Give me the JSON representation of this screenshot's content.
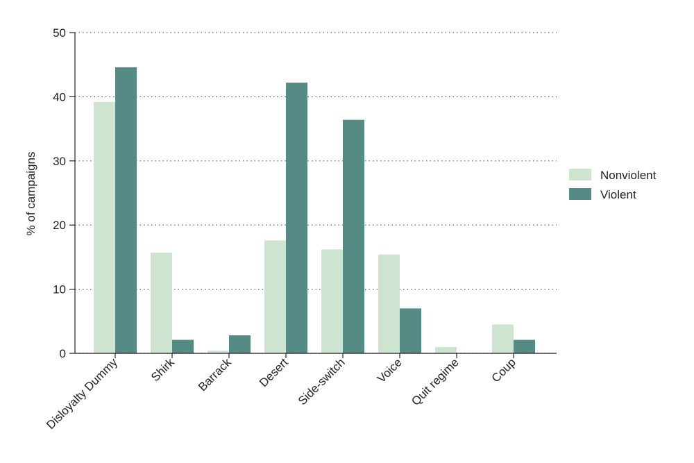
{
  "chart_data": {
    "type": "bar",
    "title": "",
    "xlabel": "",
    "ylabel": "% of campaigns",
    "ylim": [
      0,
      50
    ],
    "yticks": [
      0,
      10,
      20,
      30,
      40,
      50
    ],
    "grid": "horizontal dotted",
    "legend_position": "right",
    "categories": [
      "Disloyalty Dummy",
      "Shirk",
      "Barrack",
      "Desert",
      "Side-switch",
      "Voice",
      "Quit regime",
      "Coup"
    ],
    "series": [
      {
        "name": "Nonviolent",
        "color": "#cde4d0",
        "values": [
          39.2,
          15.7,
          0.4,
          17.6,
          16.2,
          15.4,
          1.0,
          4.5
        ]
      },
      {
        "name": "Violent",
        "color": "#568a84",
        "values": [
          44.6,
          2.1,
          2.8,
          42.2,
          36.4,
          7.0,
          0.0,
          2.1
        ]
      }
    ]
  }
}
